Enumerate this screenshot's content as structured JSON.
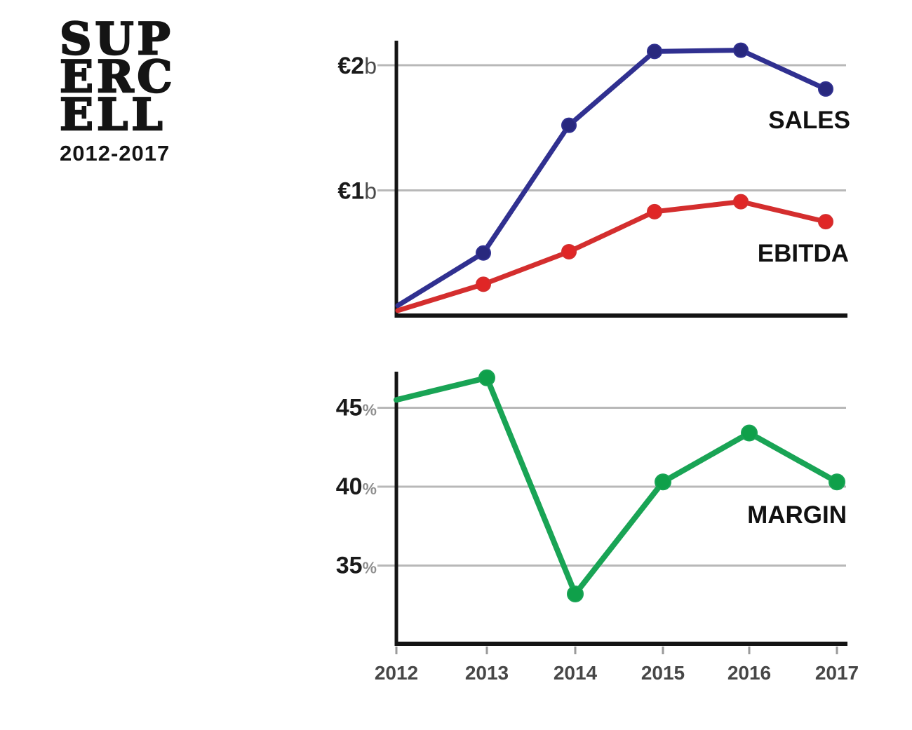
{
  "logo": {
    "lines": [
      "SUP",
      "ERC",
      "ELL"
    ],
    "subtitle": "2012-2017"
  },
  "colors": {
    "sales": "#303090",
    "sales_marker": "#28287e",
    "ebitda": "#d42e2e",
    "ebitda_marker": "#e02626",
    "margin": "#19a455",
    "margin_marker": "#0fa04a",
    "grid": "#b8b8b8",
    "axis": "#141414",
    "tick_label": "#474747"
  },
  "chart_data": [
    {
      "type": "line",
      "categories": [
        "2012",
        "2013",
        "2014",
        "2015",
        "2016",
        "2017"
      ],
      "series": [
        {
          "name": "SALES",
          "color": "#303090",
          "marker_color": "#28287e",
          "values": [
            0.08,
            0.5,
            1.52,
            2.11,
            2.12,
            1.81
          ]
        },
        {
          "name": "EBITDA",
          "color": "#d42e2e",
          "marker_color": "#e02626",
          "values": [
            0.04,
            0.25,
            0.51,
            0.83,
            0.91,
            0.75
          ]
        }
      ],
      "y_unit": "billions of euros",
      "yticks": [
        {
          "label": "€2",
          "suffix": "b",
          "value": 2
        },
        {
          "label": "€1",
          "suffix": "b",
          "value": 1
        }
      ],
      "ylim": [
        0,
        2.2
      ],
      "grid": true,
      "legend_position": "inline-right",
      "show_x_labels": false
    },
    {
      "type": "line",
      "categories": [
        "2012",
        "2013",
        "2014",
        "2015",
        "2016",
        "2017"
      ],
      "series": [
        {
          "name": "MARGIN",
          "color": "#19a455",
          "marker_color": "#0fa04a",
          "values": [
            45.5,
            46.9,
            33.2,
            40.3,
            43.4,
            40.3
          ]
        }
      ],
      "y_unit": "percent",
      "yticks": [
        {
          "label": "45",
          "suffix": "%",
          "value": 45
        },
        {
          "label": "40",
          "suffix": "%",
          "value": 40
        },
        {
          "label": "35",
          "suffix": "%",
          "value": 35
        }
      ],
      "ylim": [
        31,
        48
      ],
      "grid": true,
      "legend_position": "inline-right",
      "show_x_labels": true
    }
  ]
}
